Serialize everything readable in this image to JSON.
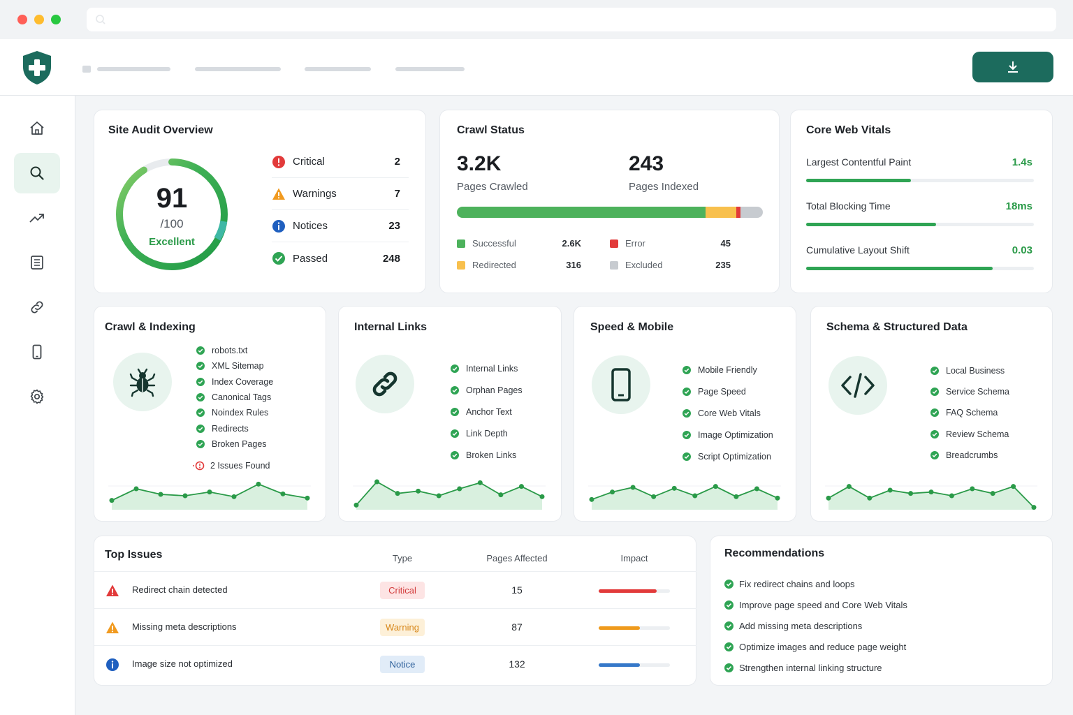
{
  "colors": {
    "brand": "#1c6b5d",
    "success": "#2fa454",
    "warning": "#f5b63f",
    "error": "#e23a3a",
    "excluded": "#c7cbd0",
    "notice": "#1f5fbf"
  },
  "header": {
    "logo_icon": "shield-plus-icon",
    "download_icon": "download-icon"
  },
  "sidebar": {
    "items": [
      {
        "icon": "home-icon",
        "active": false
      },
      {
        "icon": "search-icon",
        "active": true
      },
      {
        "icon": "trending-up-icon",
        "active": false
      },
      {
        "icon": "document-icon",
        "active": false
      },
      {
        "icon": "link-icon",
        "active": false
      },
      {
        "icon": "mobile-icon",
        "active": false
      },
      {
        "icon": "settings-icon",
        "active": false
      }
    ]
  },
  "overview": {
    "title": "Site Audit Overview",
    "score": "91",
    "score_max": "/100",
    "score_label": "Excellent",
    "score_value": 91,
    "rows": [
      {
        "label": "Critical",
        "value": "2",
        "icon": "critical-icon"
      },
      {
        "label": "Warnings",
        "value": "7",
        "icon": "warning-icon"
      },
      {
        "label": "Notices",
        "value": "23",
        "icon": "info-icon"
      },
      {
        "label": "Passed",
        "value": "248",
        "icon": "check-icon"
      }
    ]
  },
  "crawl_status": {
    "title": "Crawl Status",
    "pages_crawled": "3.2K",
    "pages_crawled_label": "Pages Crawled",
    "pages_indexed": "243",
    "pages_indexed_label": "Pages Indexed",
    "breakdown": [
      {
        "label": "Successful",
        "value": "2.6K",
        "count": 2600
      },
      {
        "label": "Redirected",
        "value": "316",
        "count": 316
      },
      {
        "label": "Error",
        "value": "45",
        "count": 45
      },
      {
        "label": "Excluded",
        "value": "235",
        "count": 235
      }
    ]
  },
  "core_web_vitals": {
    "title": "Core Web Vitals",
    "metrics": [
      {
        "label": "Largest Contentful Paint",
        "value": "1.4s",
        "fraction": 0.46
      },
      {
        "label": "Total Blocking Time",
        "value": "18ms",
        "fraction": 0.57
      },
      {
        "label": "Cumulative Layout Shift",
        "value": "0.03",
        "fraction": 0.82
      }
    ]
  },
  "crawl_indexing": {
    "title": "Crawl & Indexing",
    "icon": "bug-icon",
    "items": [
      "robots.txt",
      "XML Sitemap",
      "Index Coverage",
      "Canonical Tags",
      "Noindex Rules",
      "Redirects",
      "Broken Pages"
    ],
    "issues": "2 Issues Found",
    "trend": [
      20,
      45,
      33,
      30,
      38,
      28,
      55,
      34,
      25
    ]
  },
  "internal_links": {
    "title": "Internal Links",
    "icon": "chain-link-icon",
    "items": [
      "Internal Links",
      "Orphan Pages",
      "Anchor Text",
      "Link Depth",
      "Broken Links"
    ],
    "trend": [
      10,
      60,
      35,
      40,
      30,
      45,
      58,
      32,
      50,
      28
    ]
  },
  "speed_mobile": {
    "title": "Speed & Mobile",
    "icon": "smartphone-icon",
    "items": [
      "Mobile Friendly",
      "Page Speed",
      "Core Web Vitals",
      "Image Optimization",
      "Script Optimization"
    ],
    "trend": [
      22,
      38,
      48,
      28,
      46,
      30,
      50,
      28,
      45,
      25
    ]
  },
  "schema": {
    "title": "Schema & Structured Data",
    "icon": "code-icon",
    "items": [
      "Local Business",
      "Service Schema",
      "FAQ Schema",
      "Review Schema",
      "Breadcrumbs"
    ],
    "trend": [
      25,
      50,
      25,
      42,
      35,
      38,
      30,
      45,
      35,
      50,
      5
    ]
  },
  "top_issues": {
    "title": "Top Issues",
    "columns": [
      "Type",
      "Pages Affected",
      "Impact"
    ],
    "rows": [
      {
        "issue": "Redirect chain detected",
        "type": "Critical",
        "severity": "critical",
        "pages": "15",
        "impact": 0.81
      },
      {
        "issue": "Missing meta descriptions",
        "type": "Warning",
        "severity": "warning",
        "pages": "87",
        "impact": 0.58
      },
      {
        "issue": "Image size not optimized",
        "type": "Notice",
        "severity": "notice",
        "pages": "132",
        "impact": 0.58
      }
    ]
  },
  "recommendations": {
    "title": "Recommendations",
    "items": [
      "Fix redirect chains and loops",
      "Improve page speed and Core Web Vitals",
      "Add missing meta descriptions",
      "Optimize images and reduce page weight",
      "Strengthen internal linking structure"
    ]
  }
}
